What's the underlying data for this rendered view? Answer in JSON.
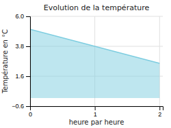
{
  "chart_data": {
    "type": "area",
    "title": "Evolution de la température",
    "xlabel": "heure par heure",
    "ylabel": "Température en °C",
    "x": [
      0,
      2
    ],
    "values": [
      5.05,
      2.55
    ],
    "color": "#7dcde0",
    "xlim": [
      0,
      2.05
    ],
    "ylim": [
      -0.6,
      6.0
    ],
    "xticks": [
      0,
      1,
      2
    ],
    "yticks": [
      {
        "value": -0.6,
        "label": "−0.6"
      },
      1.6,
      3.8,
      {
        "value": 6.0,
        "label": "6.0"
      }
    ],
    "grid": true
  }
}
